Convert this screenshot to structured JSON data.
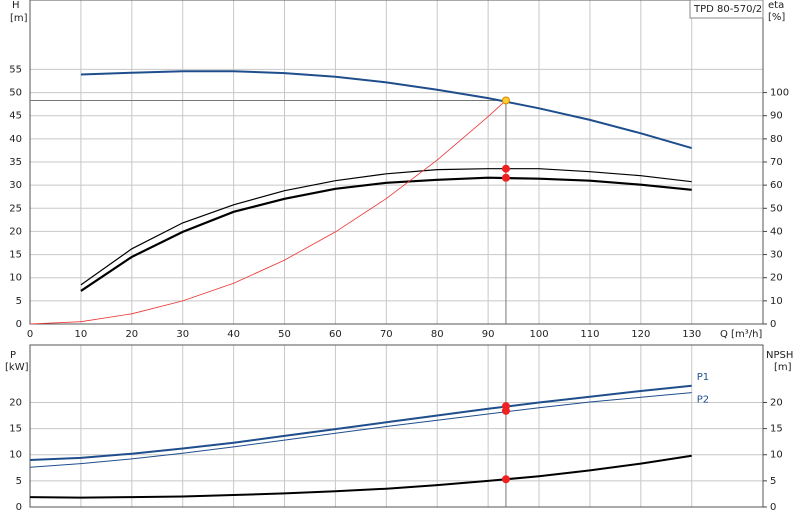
{
  "chart_data": [
    {
      "type": "line",
      "title": "TPD 80-570/2",
      "ylabel": "H",
      "yunit": "[m]",
      "y2label": "eta",
      "y2unit": "[%]",
      "xlabel": "Q [m³/h]",
      "xlim": [
        0,
        144
      ],
      "xticks": [
        0,
        10,
        20,
        30,
        40,
        50,
        60,
        70,
        80,
        90,
        100,
        110,
        120,
        130
      ],
      "ylim": [
        0,
        70
      ],
      "yticks": [
        0,
        5,
        10,
        15,
        20,
        25,
        30,
        35,
        40,
        45,
        50,
        55
      ],
      "y2lim": [
        0,
        140
      ],
      "y2ticks": [
        0,
        10,
        20,
        30,
        40,
        50,
        60,
        70,
        80,
        90,
        100
      ],
      "grid": true,
      "operating_x": 93.5,
      "x": [
        10,
        20,
        30,
        40,
        50,
        60,
        70,
        80,
        90,
        100,
        110,
        120,
        130
      ],
      "series": [
        {
          "color": "#1f4e8c",
          "width": 2,
          "values": [
            53.9,
            54.3,
            54.6,
            54.6,
            54.2,
            53.4,
            52.2,
            50.6,
            48.8,
            46.6,
            44.1,
            41.2,
            38.0
          ],
          "point": 48.3,
          "point_color": "#ffcc33"
        },
        {
          "color": "#000000",
          "width": 1.2,
          "axis": "y2",
          "values": [
            16.9,
            32.5,
            43.7,
            51.5,
            57.6,
            61.9,
            64.9,
            66.7,
            67.1,
            67.1,
            65.8,
            64.1,
            61.5
          ],
          "point": 67.1,
          "point_color": "#ee2222"
        },
        {
          "color": "#000000",
          "width": 2.2,
          "axis": "y2",
          "values": [
            14.3,
            29.0,
            39.8,
            48.5,
            54.1,
            58.4,
            61.0,
            62.3,
            63.2,
            62.8,
            61.9,
            60.2,
            58.0
          ],
          "point": 63.2,
          "point_color": "#ee2222"
        },
        {
          "color": "#ee3333",
          "width": 0.8,
          "x": [
            0,
            10,
            20,
            30,
            40,
            50,
            60,
            70,
            80,
            90,
            93.5
          ],
          "values": [
            0,
            0.5,
            2.2,
            5.0,
            8.8,
            13.8,
            19.9,
            27.1,
            35.4,
            44.8,
            48.3
          ]
        }
      ]
    },
    {
      "type": "line",
      "ylabel": "P",
      "yunit": "[kW]",
      "y2label": "NPSH",
      "y2unit": "[m]",
      "xlim": [
        0,
        144
      ],
      "ylim": [
        0,
        31
      ],
      "yticks": [
        0,
        5,
        10,
        15,
        20
      ],
      "y2lim": [
        0,
        31
      ],
      "y2ticks": [
        0,
        5,
        10,
        15,
        20
      ],
      "grid": true,
      "operating_x": 93.5,
      "x": [
        0,
        10,
        20,
        30,
        40,
        50,
        60,
        70,
        80,
        90,
        100,
        110,
        120,
        130
      ],
      "series": [
        {
          "name": "P1",
          "color": "#1f4e8c",
          "width": 2,
          "values": [
            9.0,
            9.4,
            10.2,
            11.2,
            12.3,
            13.6,
            14.9,
            16.2,
            17.5,
            18.8,
            20.0,
            21.1,
            22.2,
            23.2
          ],
          "point": 19.3,
          "point_color": "#ee2222"
        },
        {
          "name": "P2",
          "color": "#1f4e8c",
          "width": 1,
          "values": [
            7.6,
            8.3,
            9.2,
            10.3,
            11.5,
            12.8,
            14.1,
            15.4,
            16.6,
            17.8,
            19.0,
            20.1,
            21.0,
            21.9
          ],
          "point": 18.4,
          "point_color": "#ee2222"
        },
        {
          "color": "#000000",
          "width": 2,
          "axis": "y2",
          "values": [
            1.9,
            1.8,
            1.9,
            2.0,
            2.3,
            2.6,
            3.0,
            3.5,
            4.2,
            5.0,
            5.9,
            7.0,
            8.3,
            9.8
          ],
          "point": 5.3,
          "point_color": "#ee2222"
        }
      ]
    }
  ]
}
